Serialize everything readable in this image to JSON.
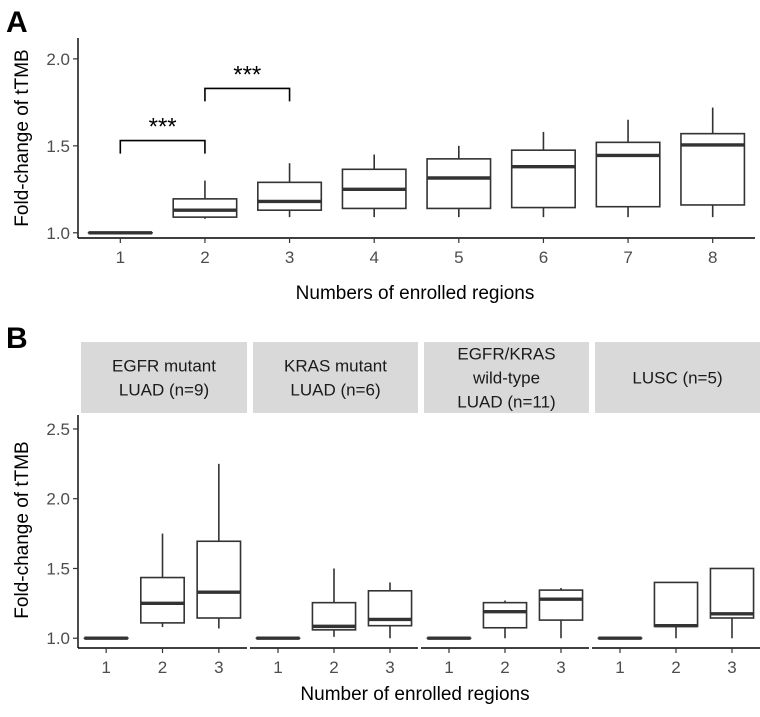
{
  "chart_data": [
    {
      "panel": "A",
      "type": "box",
      "xlabel": "Numbers of enrolled regions",
      "ylabel": "Fold-change of tTMB",
      "ylim": [
        0.97,
        2.12
      ],
      "yticks": [
        "1.0",
        "1.5",
        "2.0"
      ],
      "categories": [
        "1",
        "2",
        "3",
        "4",
        "5",
        "6",
        "7",
        "8"
      ],
      "boxes": [
        {
          "x": "1",
          "lw": 1.0,
          "q1": 1.0,
          "med": 1.0,
          "q3": 1.0,
          "uw": 1.0
        },
        {
          "x": "2",
          "lw": 1.08,
          "q1": 1.09,
          "med": 1.13,
          "q3": 1.195,
          "uw": 1.3
        },
        {
          "x": "3",
          "lw": 1.09,
          "q1": 1.13,
          "med": 1.18,
          "q3": 1.29,
          "uw": 1.4
        },
        {
          "x": "4",
          "lw": 1.09,
          "q1": 1.14,
          "med": 1.25,
          "q3": 1.365,
          "uw": 1.45
        },
        {
          "x": "5",
          "lw": 1.09,
          "q1": 1.14,
          "med": 1.315,
          "q3": 1.425,
          "uw": 1.5
        },
        {
          "x": "6",
          "lw": 1.09,
          "q1": 1.145,
          "med": 1.38,
          "q3": 1.475,
          "uw": 1.58
        },
        {
          "x": "7",
          "lw": 1.09,
          "q1": 1.15,
          "med": 1.445,
          "q3": 1.52,
          "uw": 1.65
        },
        {
          "x": "8",
          "lw": 1.09,
          "q1": 1.16,
          "med": 1.505,
          "q3": 1.57,
          "uw": 1.72
        }
      ],
      "annotations": [
        {
          "from": "1",
          "to": "2",
          "label": "***",
          "y": 1.53
        },
        {
          "from": "2",
          "to": "3",
          "label": "***",
          "y": 1.83
        }
      ]
    },
    {
      "panel": "B",
      "type": "box",
      "xlabel": "Number of enrolled regions",
      "ylabel": "Fold-change of tTMB",
      "ylim": [
        0.93,
        2.6
      ],
      "yticks": [
        "1.0",
        "1.5",
        "2.0",
        "2.5"
      ],
      "categories": [
        "1",
        "2",
        "3"
      ],
      "facets": [
        {
          "lines": [
            "EGFR mutant",
            "LUAD (n=9)"
          ],
          "boxes": [
            {
              "x": "1",
              "lw": 1.0,
              "q1": 1.0,
              "med": 1.0,
              "q3": 1.0,
              "uw": 1.0
            },
            {
              "x": "2",
              "lw": 1.08,
              "q1": 1.11,
              "med": 1.25,
              "q3": 1.435,
              "uw": 1.75
            },
            {
              "x": "3",
              "lw": 1.07,
              "q1": 1.145,
              "med": 1.33,
              "q3": 1.695,
              "uw": 2.25
            }
          ]
        },
        {
          "lines": [
            "KRAS mutant",
            "LUAD (n=6)"
          ],
          "boxes": [
            {
              "x": "1",
              "lw": 1.0,
              "q1": 1.0,
              "med": 1.0,
              "q3": 1.0,
              "uw": 1.0
            },
            {
              "x": "2",
              "lw": 1.01,
              "q1": 1.06,
              "med": 1.085,
              "q3": 1.255,
              "uw": 1.5
            },
            {
              "x": "3",
              "lw": 1.0,
              "q1": 1.09,
              "med": 1.135,
              "q3": 1.34,
              "uw": 1.4
            }
          ]
        },
        {
          "lines": [
            "EGFR/KRAS",
            "wild-type",
            "LUAD (n=11)"
          ],
          "boxes": [
            {
              "x": "1",
              "lw": 1.0,
              "q1": 1.0,
              "med": 1.0,
              "q3": 1.0,
              "uw": 1.0
            },
            {
              "x": "2",
              "lw": 1.0,
              "q1": 1.075,
              "med": 1.19,
              "q3": 1.255,
              "uw": 1.27
            },
            {
              "x": "3",
              "lw": 1.0,
              "q1": 1.13,
              "med": 1.28,
              "q3": 1.345,
              "uw": 1.36
            }
          ]
        },
        {
          "lines": [
            "LUSC (n=5)"
          ],
          "boxes": [
            {
              "x": "1",
              "lw": 1.0,
              "q1": 1.0,
              "med": 1.0,
              "q3": 1.0,
              "uw": 1.0
            },
            {
              "x": "2",
              "lw": 1.0,
              "q1": 1.085,
              "med": 1.09,
              "q3": 1.4,
              "uw": 1.4
            },
            {
              "x": "3",
              "lw": 1.0,
              "q1": 1.145,
              "med": 1.175,
              "q3": 1.5,
              "uw": 1.5
            }
          ]
        }
      ]
    }
  ],
  "colors": {
    "stroke": "#333333",
    "strip": "#d9d9d9",
    "tick_text": "#4d4d4d"
  }
}
